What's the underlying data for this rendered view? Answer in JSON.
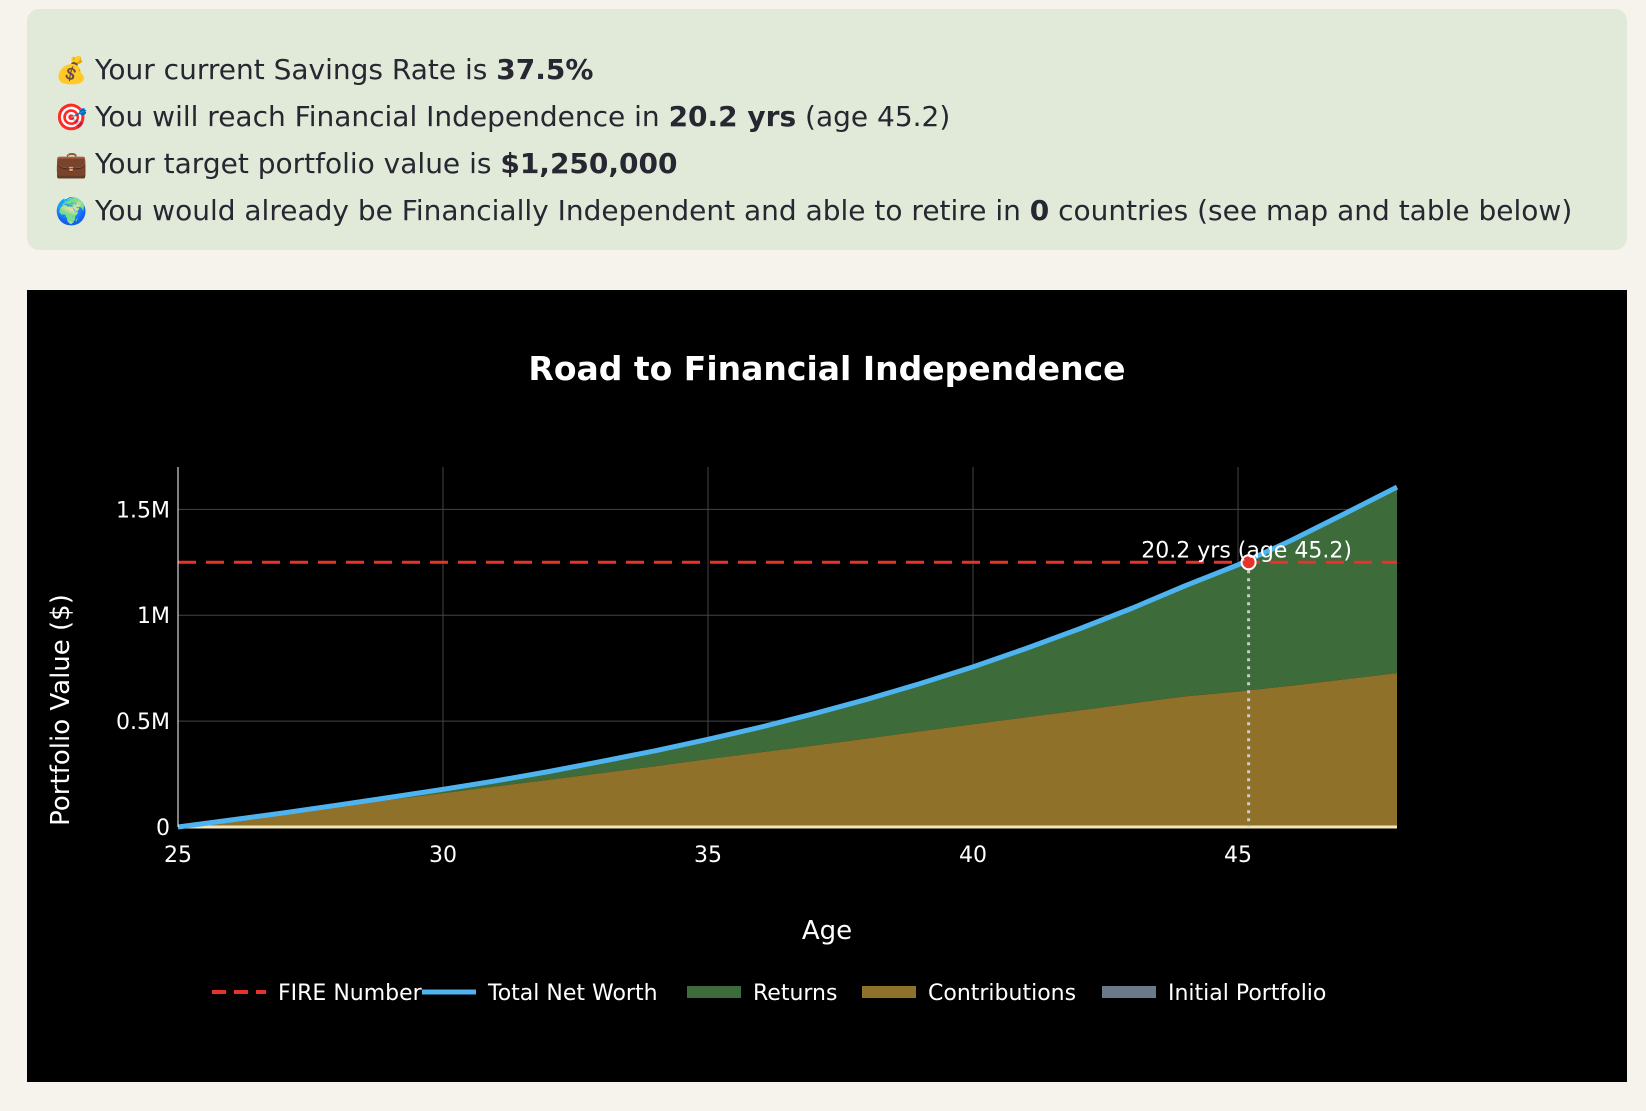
{
  "summary": {
    "lines": [
      {
        "icon": "money-bag-icon",
        "emoji": "💰",
        "before": "Your current Savings Rate is ",
        "bold": "37.5%",
        "after": ""
      },
      {
        "icon": "target-icon",
        "emoji": "🎯",
        "before": "You will reach Financial Independence in ",
        "bold": "20.2 yrs",
        "after": " (age 45.2)"
      },
      {
        "icon": "briefcase-icon",
        "emoji": "💼",
        "before": "Your target portfolio value is ",
        "bold": "$1,250,000",
        "after": ""
      },
      {
        "icon": "globe-icon",
        "emoji": "🌍",
        "before": "You would already be Financially Independent and able to retire in ",
        "bold": "0",
        "after": " countries (see map and table below)"
      }
    ]
  },
  "chart_data": {
    "type": "area",
    "title": "Road to Financial Independence",
    "xlabel": "Age",
    "ylabel": "Portfolio Value ($)",
    "xlim": [
      25,
      48
    ],
    "ylim": [
      0,
      1700000
    ],
    "x_ticks": [
      25,
      30,
      35,
      40,
      45
    ],
    "x_tick_labels": [
      "25",
      "30",
      "35",
      "40",
      "45"
    ],
    "y_ticks": [
      0,
      500000,
      1000000,
      1500000
    ],
    "y_tick_labels": [
      "0",
      "0.5M",
      "1M",
      "1.5M"
    ],
    "grid": true,
    "legend_position": "bottom",
    "x": [
      25,
      26,
      27,
      28,
      29,
      30,
      31,
      32,
      33,
      34,
      35,
      36,
      37,
      38,
      39,
      40,
      41,
      42,
      43,
      44,
      45,
      46,
      47,
      48
    ],
    "series": [
      {
        "name": "FIRE Number",
        "style": "dashed",
        "color": "#e8332a",
        "values": [
          1250000,
          1250000,
          1250000,
          1250000,
          1250000,
          1250000,
          1250000,
          1250000,
          1250000,
          1250000,
          1250000,
          1250000,
          1250000,
          1250000,
          1250000,
          1250000,
          1250000,
          1250000,
          1250000,
          1250000,
          1250000,
          1250000,
          1250000,
          1250000
        ]
      },
      {
        "name": "Total Net Worth",
        "style": "line",
        "color": "#4fb3ef",
        "values": [
          0,
          33000,
          67000,
          103000,
          140000,
          178000,
          218000,
          262000,
          310000,
          360000,
          414000,
          472000,
          535000,
          603000,
          677000,
          756000,
          843000,
          935000,
          1033000,
          1139000,
          1238000,
          1353000,
          1478000,
          1605000
        ]
      },
      {
        "name": "Returns",
        "style": "area",
        "color": "#3d6b3a",
        "values": [
          0,
          1000,
          3000,
          6000,
          12000,
          18000,
          26000,
          39000,
          55000,
          73000,
          93000,
          119000,
          150000,
          185000,
          225000,
          271000,
          325000,
          384000,
          449000,
          522000,
          598000,
          686000,
          781000,
          878000
        ]
      },
      {
        "name": "Contributions",
        "style": "area",
        "color": "#8f7129",
        "values": [
          0,
          32000,
          64000,
          97000,
          128000,
          160000,
          192000,
          223000,
          255000,
          287000,
          321000,
          353000,
          385000,
          418000,
          452000,
          485000,
          518000,
          551000,
          584000,
          617000,
          640000,
          667000,
          697000,
          727000
        ]
      },
      {
        "name": "Initial Portfolio",
        "style": "area",
        "color": "#6a7a88",
        "values": [
          0,
          0,
          0,
          0,
          0,
          0,
          0,
          0,
          0,
          0,
          0,
          0,
          0,
          0,
          0,
          0,
          0,
          0,
          0,
          0,
          0,
          0,
          0,
          0
        ]
      }
    ],
    "fi_point": {
      "x": 45.2,
      "y": 1250000,
      "label": "20.2 yrs (age 45.2)"
    }
  }
}
